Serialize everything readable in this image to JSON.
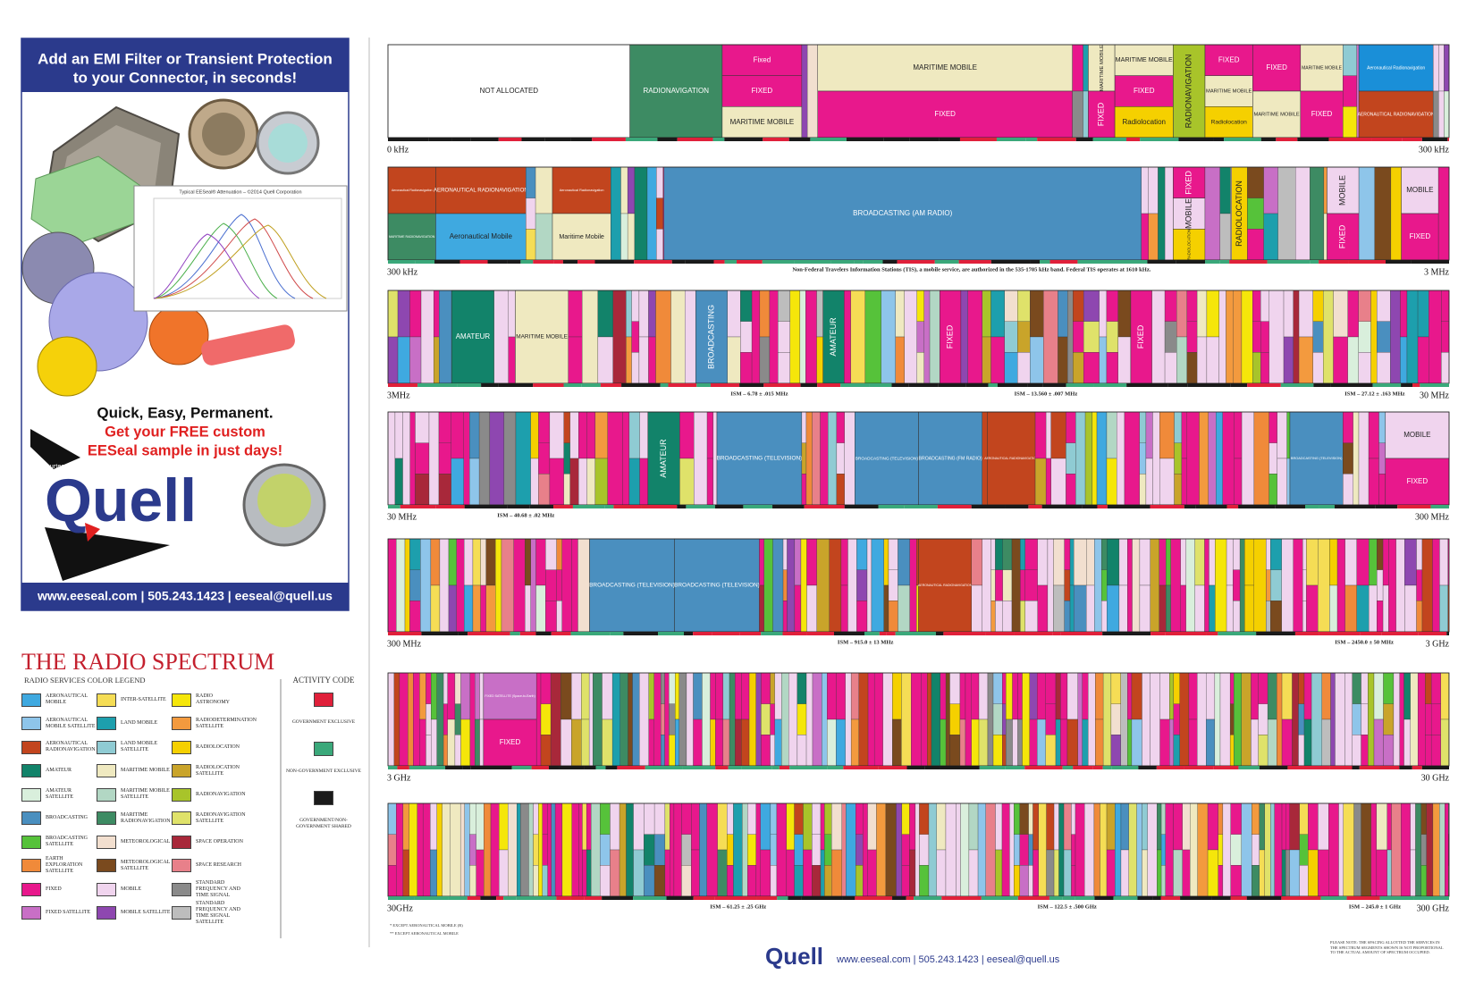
{
  "ad": {
    "headline": [
      "Add an EMI Filter or Transient Protection",
      "to your Connector, in seconds!"
    ],
    "graph_title": "Typical EESeal® Attenuation – ©2014 Quell Corporation",
    "tagline": "Quick, Easy, Permanent.",
    "offer": [
      "Get your FREE custom",
      "EESeal sample in just days!"
    ],
    "courtesy": "Courtesy of",
    "logo": "Quell",
    "contact": "www.eeseal.com | 505.243.1423 | eeseal@quell.us"
  },
  "legend": {
    "title": "THE RADIO SPECTRUM",
    "subtitle": "RADIO SERVICES COLOR LEGEND",
    "items": [
      {
        "label": "Aeronautical Mobile",
        "color": "#3fa9e0"
      },
      {
        "label": "Aeronautical Mobile Satellite",
        "color": "#8ec5ea"
      },
      {
        "label": "Aeronautical Radionavigation",
        "color": "#c2451e"
      },
      {
        "label": "Amateur",
        "color": "#12836a"
      },
      {
        "label": "Amateur Satellite",
        "color": "#d9efdc"
      },
      {
        "label": "Broadcasting",
        "color": "#4a8fbf"
      },
      {
        "label": "Broadcasting Satellite",
        "color": "#56c23a"
      },
      {
        "label": "Earth Exploration Satellite",
        "color": "#f08a3a"
      },
      {
        "label": "Fixed",
        "color": "#e8188c"
      },
      {
        "label": "Fixed Satellite",
        "color": "#c86fc6"
      },
      {
        "label": "Inter-Satellite",
        "color": "#f5dd55"
      },
      {
        "label": "Land Mobile",
        "color": "#1d9fad"
      },
      {
        "label": "Land Mobile Satellite",
        "color": "#8fcbd3"
      },
      {
        "label": "Maritime Mobile",
        "color": "#efe9c0"
      },
      {
        "label": "Maritime Mobile Satellite",
        "color": "#b2d7c4"
      },
      {
        "label": "Maritime Radionavigation",
        "color": "#3d8b63"
      },
      {
        "label": "Meteorological",
        "color": "#f2dfcf"
      },
      {
        "label": "Meteorological Satellite",
        "color": "#7a4a1e"
      },
      {
        "label": "Mobile",
        "color": "#f0d4ee"
      },
      {
        "label": "Mobile Satellite",
        "color": "#8e47b0"
      },
      {
        "label": "Radio Astronomy",
        "color": "#f5e60a"
      },
      {
        "label": "Radiodetermination Satellite",
        "color": "#f39a3e"
      },
      {
        "label": "Radiolocation",
        "color": "#f5d000"
      },
      {
        "label": "Radiolocation Satellite",
        "color": "#c9a42a"
      },
      {
        "label": "Radionavigation",
        "color": "#a8c42a"
      },
      {
        "label": "Radionavigation Satellite",
        "color": "#dfe26a"
      },
      {
        "label": "Space Operation",
        "color": "#a8283a"
      },
      {
        "label": "Space Research",
        "color": "#e8808a"
      },
      {
        "label": "Standard Frequency and Time Signal",
        "color": "#8a8a8a"
      },
      {
        "label": "Standard Frequency and Time Signal Satellite",
        "color": "#bdbdbd"
      }
    ],
    "activity_title": "ACTIVITY CODE",
    "activity": [
      {
        "label": "GOVERNMENT EXCLUSIVE",
        "color": "#e0203a"
      },
      {
        "label": "NON-GOVERNMENT EXCLUSIVE",
        "color": "#3aa87a"
      },
      {
        "label": "GOVERNMENT/NON-GOVERNMENT SHARED",
        "color": "#1a1a1a"
      }
    ],
    "footnotes": [
      "* EXCEPT AERONAUTICAL MOBILE (R)",
      "** EXCEPT AERONAUTICAL MOBILE"
    ]
  },
  "chart": {
    "rows": [
      {
        "start": "0 kHz",
        "end": "300 kHz",
        "ism": [],
        "blocks": [
          {
            "parts": [
              {
                "label": "NOT ALLOCATED",
                "color": "#ffffff"
              }
            ]
          },
          {
            "parts": [
              {
                "label": "RADIONAVIGATION",
                "color": "#3d8b63"
              }
            ]
          },
          {
            "parts": [
              {
                "label": "Fixed",
                "color": "#e8188c"
              },
              {
                "label": "FIXED",
                "color": "#e8188c"
              },
              {
                "label": "MARITIME MOBILE",
                "color": "#efe9c0"
              }
            ]
          },
          {
            "parts": [
              {
                "label": "MARITIME MOBILE",
                "color": "#efe9c0"
              },
              {
                "label": "FIXED",
                "color": "#e8188c"
              }
            ]
          },
          {
            "parts": [
              {
                "label": "MARITIME MOBILE",
                "color": "#efe9c0"
              },
              {
                "label": "FIXED",
                "color": "#e8188c"
              }
            ]
          },
          {
            "parts": [
              {
                "label": "MARITIME MOBILE",
                "color": "#efe9c0"
              },
              {
                "label": "FIXED",
                "color": "#e8188c"
              },
              {
                "label": "Radiolocation",
                "color": "#f5d000"
              }
            ]
          },
          {
            "parts": [
              {
                "label": "RADIONAVIGATION",
                "color": "#a8c42a"
              }
            ]
          },
          {
            "parts": [
              {
                "label": "FIXED",
                "color": "#e8188c"
              },
              {
                "label": "MARITIME MOBILE",
                "color": "#efe9c0"
              },
              {
                "label": "Radiolocation",
                "color": "#f5d000"
              }
            ]
          },
          {
            "parts": [
              {
                "label": "FIXED",
                "color": "#e8188c"
              },
              {
                "label": "MARITIME MOBILE",
                "color": "#efe9c0"
              }
            ]
          },
          {
            "parts": [
              {
                "label": "MARITIME MOBILE",
                "color": "#efe9c0"
              },
              {
                "label": "FIXED",
                "color": "#e8188c"
              }
            ]
          },
          {
            "parts": [
              {
                "label": "Aeronautical Radionavigation",
                "color": "#1a8fd8"
              },
              {
                "label": "AERONAUTICAL RADIONAVIGATION",
                "color": "#c2451e"
              }
            ]
          }
        ]
      },
      {
        "start": "300 kHz",
        "end": "3 MHz",
        "ism": [],
        "notice": "Non-Federal Travelers Information Stations (TIS), a mobile service, are authorized in the 535-1705 kHz band.  Federal TIS operates at 1610 kHz.",
        "blocks": [
          {
            "parts": [
              {
                "label": "Aeronautical Radionavigation",
                "color": "#c2451e"
              },
              {
                "label": "MARITIME RADIONAVIGATION",
                "color": "#3d8b63"
              }
            ]
          },
          {
            "parts": [
              {
                "label": "AERONAUTICAL RADIONAVIGATION",
                "color": "#c2451e"
              },
              {
                "label": "Aeronautical Mobile",
                "color": "#3fa9e0"
              }
            ]
          },
          {
            "parts": [
              {
                "label": "Aeronautical Radionavigation",
                "color": "#c2451e"
              },
              {
                "label": "Maritime Mobile",
                "color": "#efe9c0"
              }
            ]
          },
          {
            "parts": [
              {
                "label": "BROADCASTING (AM RADIO)",
                "color": "#4a8fbf"
              }
            ]
          },
          {
            "parts": [
              {
                "label": "FIXED",
                "color": "#e8188c"
              },
              {
                "label": "MOBILE",
                "color": "#f0d4ee"
              },
              {
                "label": "RADIOLOCATION",
                "color": "#f5d000"
              }
            ]
          },
          {
            "parts": [
              {
                "label": "RADIOLOCATION",
                "color": "#f5d000"
              }
            ]
          },
          {
            "parts": [
              {
                "label": "MOBILE",
                "color": "#f0d4ee"
              },
              {
                "label": "FIXED",
                "color": "#e8188c"
              }
            ]
          },
          {
            "parts": [
              {
                "label": "MOBILE",
                "color": "#f0d4ee"
              },
              {
                "label": "FIXED",
                "color": "#e8188c"
              }
            ]
          }
        ]
      },
      {
        "start": "3MHz",
        "end": "30 MHz",
        "ism": [
          "ISM – 6.78 ± .015 MHz",
          "ISM – 13.560 ± .007 MHz",
          "ISM – 27.12 ± .163 MHz"
        ],
        "blocks": [
          {
            "parts": [
              {
                "label": "AMATEUR",
                "color": "#12836a"
              }
            ]
          },
          {
            "parts": [
              {
                "label": "MARITIME MOBILE",
                "color": "#efe9c0"
              }
            ]
          },
          {
            "parts": [
              {
                "label": "BROADCASTING",
                "color": "#4a8fbf"
              }
            ]
          },
          {
            "parts": [
              {
                "label": "AMATEUR",
                "color": "#12836a"
              }
            ]
          },
          {
            "parts": [
              {
                "label": "FIXED",
                "color": "#e8188c"
              }
            ]
          },
          {
            "parts": [
              {
                "label": "FIXED",
                "color": "#e8188c"
              }
            ]
          }
        ]
      },
      {
        "start": "30 MHz",
        "end": "300 MHz",
        "ism": [
          "ISM – 40.68 ± .02 MHz"
        ],
        "blocks": [
          {
            "parts": [
              {
                "label": "AMATEUR",
                "color": "#12836a"
              }
            ]
          },
          {
            "parts": [
              {
                "label": "BROADCASTING (TELEVISION)",
                "color": "#4a8fbf"
              }
            ]
          },
          {
            "parts": [
              {
                "label": "BROADCASTING (TELEVISION)",
                "color": "#4a8fbf"
              }
            ]
          },
          {
            "parts": [
              {
                "label": "BROADCASTING (FM RADIO)",
                "color": "#4a8fbf"
              }
            ]
          },
          {
            "parts": [
              {
                "label": "AERONAUTICAL RADIONAVIGATION",
                "color": "#c2451e"
              }
            ]
          },
          {
            "parts": [
              {
                "label": "BROADCASTING (TELEVISION)",
                "color": "#4a8fbf"
              }
            ]
          },
          {
            "parts": [
              {
                "label": "MOBILE",
                "color": "#f0d4ee"
              },
              {
                "label": "FIXED",
                "color": "#e8188c"
              }
            ]
          }
        ]
      },
      {
        "start": "300 MHz",
        "end": "3 GHz",
        "ism": [
          "ISM – 915.0 ± 13 MHz",
          "ISM – 2450.0 ± 50 MHz"
        ],
        "blocks": [
          {
            "parts": [
              {
                "label": "BROADCASTING (TELEVISION)",
                "color": "#4a8fbf"
              }
            ]
          },
          {
            "parts": [
              {
                "label": "BROADCASTING (TELEVISION)",
                "color": "#4a8fbf"
              }
            ]
          },
          {
            "parts": [
              {
                "label": "AERONAUTICAL RADIONAVIGATION",
                "color": "#c2451e"
              }
            ]
          }
        ]
      },
      {
        "start": "3 GHz",
        "end": "30 GHz",
        "ism": [],
        "blocks": [
          {
            "parts": [
              {
                "label": "FIXED SATELLITE (Space-to-Earth)",
                "color": "#c86fc6"
              },
              {
                "label": "FIXED",
                "color": "#e8188c"
              }
            ]
          }
        ]
      },
      {
        "start": "30GHz",
        "end": "300 GHz",
        "ism": [
          "ISM – 61.25 ± .25 GHz",
          "ISM – 122.5 ± .500 GHz",
          "ISM – 245.0 ± 1 GHz"
        ],
        "blocks": []
      }
    ]
  },
  "footer": {
    "logo": "Quell",
    "contact": "www.eeseal.com | 505.243.1423 | eeseal@quell.us",
    "note": "PLEASE NOTE: THE SPACING ALLOTTED THE SERVICES IN THE SPECTRUM SEGMENTS SHOWN IS NOT PROPORTIONAL TO THE ACTUAL AMOUNT OF SPECTRUM OCCUPIED."
  }
}
